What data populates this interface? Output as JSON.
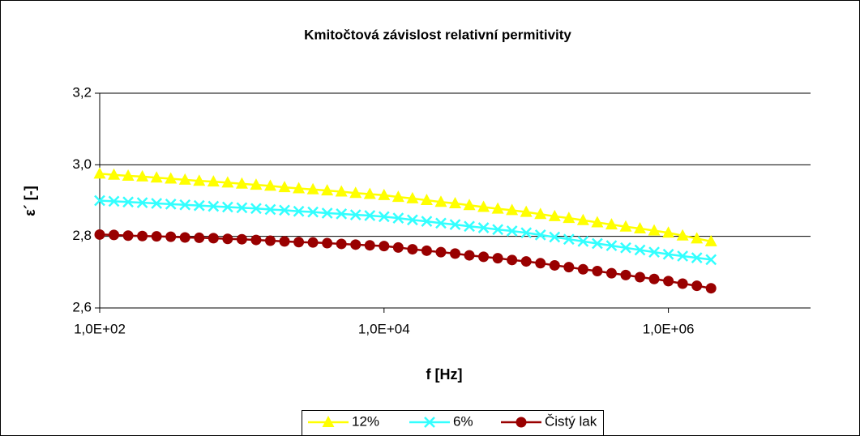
{
  "chart_data": {
    "type": "line",
    "title": "Kmitočtová závislost relativní permitivity",
    "x_label": "f [Hz]",
    "y_label": "ε´ [-]",
    "x": [
      100,
      125.9,
      158.5,
      199.5,
      251.2,
      316.2,
      398.1,
      501.2,
      631,
      794.3,
      1000,
      1259,
      1585,
      1995,
      2512,
      3162,
      3981,
      5012,
      6310,
      7943,
      10000,
      12589,
      15849,
      19953,
      25119,
      31623,
      39811,
      50119,
      63096,
      79433,
      100000,
      125893,
      158489,
      199526,
      251189,
      316228,
      398107,
      501187,
      630957,
      794328,
      1000000,
      1258925,
      1584893,
      1995262
    ],
    "series": [
      {
        "name": "12%",
        "color": "#ffff00",
        "marker": "triangle",
        "values": [
          2.975,
          2.972,
          2.969,
          2.967,
          2.964,
          2.961,
          2.958,
          2.955,
          2.953,
          2.95,
          2.947,
          2.944,
          2.941,
          2.937,
          2.934,
          2.931,
          2.928,
          2.925,
          2.921,
          2.918,
          2.915,
          2.91,
          2.906,
          2.901,
          2.896,
          2.892,
          2.887,
          2.882,
          2.877,
          2.873,
          2.868,
          2.862,
          2.856,
          2.851,
          2.845,
          2.839,
          2.833,
          2.827,
          2.822,
          2.816,
          2.81,
          2.802,
          2.794,
          2.786
        ]
      },
      {
        "name": "6%",
        "color": "#33ffff",
        "marker": "x",
        "values": [
          2.9,
          2.898,
          2.896,
          2.894,
          2.892,
          2.89,
          2.888,
          2.886,
          2.884,
          2.882,
          2.88,
          2.878,
          2.875,
          2.873,
          2.87,
          2.868,
          2.865,
          2.863,
          2.86,
          2.858,
          2.855,
          2.851,
          2.846,
          2.842,
          2.837,
          2.833,
          2.828,
          2.824,
          2.819,
          2.815,
          2.81,
          2.804,
          2.798,
          2.792,
          2.786,
          2.78,
          2.774,
          2.768,
          2.762,
          2.756,
          2.75,
          2.745,
          2.74,
          2.735
        ]
      },
      {
        "name": "Čistý lak",
        "color": "#990000",
        "marker": "circle",
        "values": [
          2.805,
          2.804,
          2.802,
          2.801,
          2.8,
          2.799,
          2.797,
          2.796,
          2.795,
          2.793,
          2.792,
          2.79,
          2.788,
          2.786,
          2.784,
          2.783,
          2.781,
          2.779,
          2.777,
          2.775,
          2.773,
          2.769,
          2.764,
          2.76,
          2.756,
          2.752,
          2.747,
          2.743,
          2.739,
          2.734,
          2.73,
          2.725,
          2.719,
          2.714,
          2.708,
          2.703,
          2.697,
          2.692,
          2.686,
          2.681,
          2.675,
          2.668,
          2.662,
          2.655
        ]
      }
    ],
    "xlog": true,
    "xlim": [
      100,
      10000000
    ],
    "xticks": [
      {
        "value": 100,
        "label": "1,0E+02"
      },
      {
        "value": 10000,
        "label": "1,0E+04"
      },
      {
        "value": 1000000,
        "label": "1,0E+06"
      }
    ],
    "ylim": [
      2.6,
      3.2
    ],
    "yticks": [
      {
        "value": 2.6,
        "label": "2,6"
      },
      {
        "value": 2.8,
        "label": "2,8"
      },
      {
        "value": 3.0,
        "label": "3,0"
      },
      {
        "value": 3.2,
        "label": "3,2"
      }
    ],
    "grid": true,
    "legend": "bottom"
  }
}
